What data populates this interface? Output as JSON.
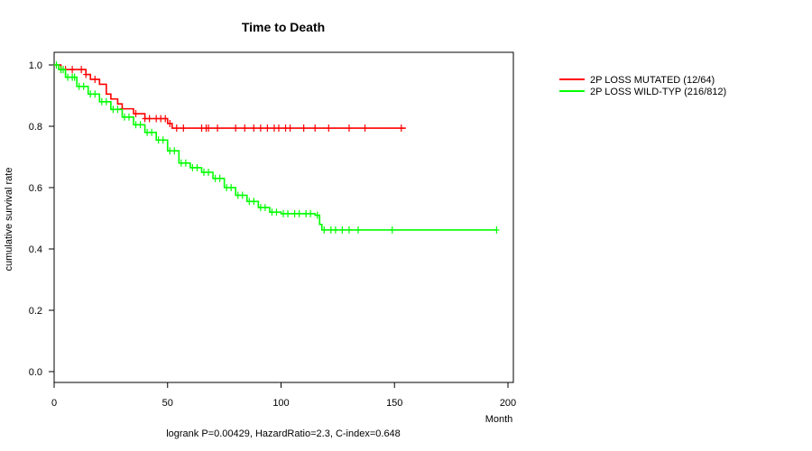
{
  "chart_data": {
    "type": "line",
    "title": "Time to Death",
    "xlabel": "Month",
    "ylabel": "cumulative survival rate",
    "xlim": [
      0,
      200
    ],
    "ylim": [
      0,
      1
    ],
    "xticks": [
      "0",
      "50",
      "100",
      "150",
      "200"
    ],
    "xtick_values": [
      0,
      50,
      100,
      150,
      200
    ],
    "yticks": [
      "0.0",
      "0.2",
      "0.4",
      "0.6",
      "0.8",
      "1.0"
    ],
    "ytick_values": [
      0.0,
      0.2,
      0.4,
      0.6,
      0.8,
      1.0
    ],
    "footnote": "logrank P=0.00429, HazardRatio=2.3, C-index=0.648",
    "legend_position": "top-right-outside",
    "series": [
      {
        "name": "2P LOSS MUTATED (12/64)",
        "color": "#ff0000",
        "step_x": [
          0,
          3,
          14,
          16,
          20,
          23,
          25,
          28,
          30,
          35,
          40,
          50,
          52,
          155
        ],
        "step_y": [
          1.0,
          0.985,
          0.969,
          0.953,
          0.937,
          0.905,
          0.889,
          0.873,
          0.857,
          0.841,
          0.825,
          0.809,
          0.794,
          0.794
        ],
        "censor_x": [
          3,
          5,
          8,
          12,
          14,
          18,
          30,
          36,
          40,
          42,
          45,
          47,
          49,
          51,
          54,
          57,
          65,
          67,
          68,
          72,
          80,
          84,
          88,
          91,
          94,
          97,
          99,
          102,
          104,
          110,
          115,
          121,
          130,
          137,
          153
        ]
      },
      {
        "name": "2P LOSS WILD-TYP (216/812)",
        "color": "#00ff00",
        "step_x": [
          0,
          2,
          5,
          10,
          15,
          20,
          25,
          30,
          35,
          40,
          45,
          50,
          55,
          60,
          65,
          70,
          75,
          80,
          85,
          90,
          95,
          100,
          105,
          110,
          115,
          117,
          118,
          195
        ],
        "step_y": [
          1.0,
          0.985,
          0.96,
          0.93,
          0.905,
          0.88,
          0.855,
          0.83,
          0.805,
          0.78,
          0.755,
          0.72,
          0.68,
          0.665,
          0.65,
          0.63,
          0.6,
          0.575,
          0.555,
          0.535,
          0.52,
          0.515,
          0.515,
          0.515,
          0.51,
          0.48,
          0.462,
          0.462
        ],
        "censor_x": [
          1,
          3,
          4,
          6,
          8,
          9,
          11,
          13,
          16,
          18,
          21,
          23,
          26,
          28,
          31,
          33,
          36,
          38,
          41,
          43,
          46,
          48,
          51,
          53,
          56,
          58,
          61,
          63,
          66,
          68,
          71,
          73,
          76,
          78,
          81,
          83,
          86,
          88,
          91,
          93,
          96,
          98,
          101,
          103,
          106,
          108,
          111,
          113,
          116,
          119,
          122,
          124,
          127,
          130,
          134,
          149,
          195
        ]
      }
    ]
  }
}
